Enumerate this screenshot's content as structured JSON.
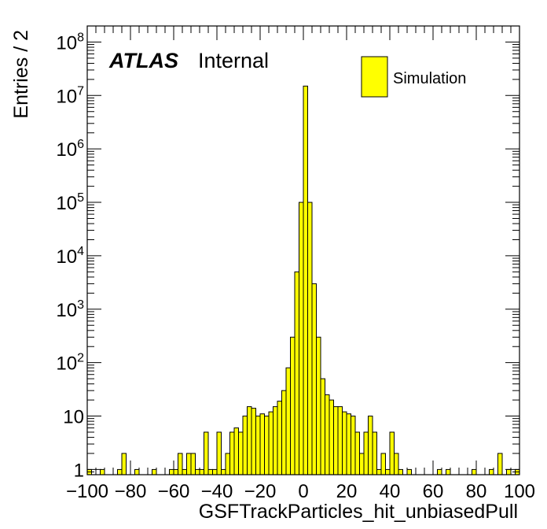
{
  "chart_data": {
    "type": "bar",
    "label_main": "ATLAS",
    "label_sub": "Internal",
    "xlabel": "GSFTrackParticles_hit_unbiasedPull",
    "ylabel": "Entries / 2",
    "xlim": [
      -100,
      100
    ],
    "ylim": [
      0.8,
      200000000
    ],
    "yscale": "log",
    "bin_width": 2,
    "grid": false,
    "legend_position": "top-right",
    "x_tick_labels": [
      "−100",
      "−80",
      "−60",
      "−40",
      "−20",
      "0",
      "20",
      "40",
      "60",
      "80",
      "100"
    ],
    "y_tick_labels": [
      {
        "base": "1",
        "exp": ""
      },
      {
        "base": "10",
        "exp": ""
      },
      {
        "base": "10",
        "exp": "2"
      },
      {
        "base": "10",
        "exp": "3"
      },
      {
        "base": "10",
        "exp": "4"
      },
      {
        "base": "10",
        "exp": "5"
      },
      {
        "base": "10",
        "exp": "6"
      },
      {
        "base": "10",
        "exp": "7"
      },
      {
        "base": "10",
        "exp": "8"
      }
    ],
    "series": [
      {
        "name": "Simulation",
        "color": "#ffff00",
        "edge_color": "#000000",
        "bins": [
          [
            -100,
            1
          ],
          [
            -94,
            1
          ],
          [
            -86,
            1
          ],
          [
            -84,
            2
          ],
          [
            -78,
            1
          ],
          [
            -70,
            1
          ],
          [
            -62,
            1
          ],
          [
            -60,
            1
          ],
          [
            -58,
            2
          ],
          [
            -56,
            1
          ],
          [
            -54,
            2
          ],
          [
            -52,
            2
          ],
          [
            -50,
            1
          ],
          [
            -48,
            1
          ],
          [
            -46,
            5
          ],
          [
            -44,
            1
          ],
          [
            -42,
            1
          ],
          [
            -40,
            5
          ],
          [
            -38,
            1
          ],
          [
            -36,
            2
          ],
          [
            -34,
            5
          ],
          [
            -32,
            6
          ],
          [
            -30,
            5
          ],
          [
            -28,
            10
          ],
          [
            -26,
            15
          ],
          [
            -24,
            14
          ],
          [
            -22,
            10
          ],
          [
            -20,
            11
          ],
          [
            -18,
            10
          ],
          [
            -16,
            12
          ],
          [
            -14,
            15
          ],
          [
            -12,
            19
          ],
          [
            -10,
            30
          ],
          [
            -8,
            80
          ],
          [
            -6,
            300
          ],
          [
            -4,
            5000
          ],
          [
            -2,
            100000
          ],
          [
            0,
            15000000
          ],
          [
            2,
            100000
          ],
          [
            4,
            3000
          ],
          [
            6,
            300
          ],
          [
            8,
            50
          ],
          [
            10,
            25
          ],
          [
            12,
            20
          ],
          [
            14,
            15
          ],
          [
            16,
            15
          ],
          [
            18,
            12
          ],
          [
            20,
            11
          ],
          [
            22,
            10
          ],
          [
            24,
            5
          ],
          [
            26,
            2
          ],
          [
            28,
            5
          ],
          [
            30,
            10
          ],
          [
            32,
            5
          ],
          [
            34,
            1
          ],
          [
            36,
            2
          ],
          [
            38,
            1
          ],
          [
            40,
            5
          ],
          [
            42,
            2
          ],
          [
            44,
            1
          ],
          [
            48,
            1
          ],
          [
            62,
            1
          ],
          [
            66,
            1
          ],
          [
            78,
            1
          ],
          [
            86,
            1
          ],
          [
            90,
            2
          ],
          [
            94,
            1
          ],
          [
            98,
            1
          ]
        ]
      }
    ]
  }
}
